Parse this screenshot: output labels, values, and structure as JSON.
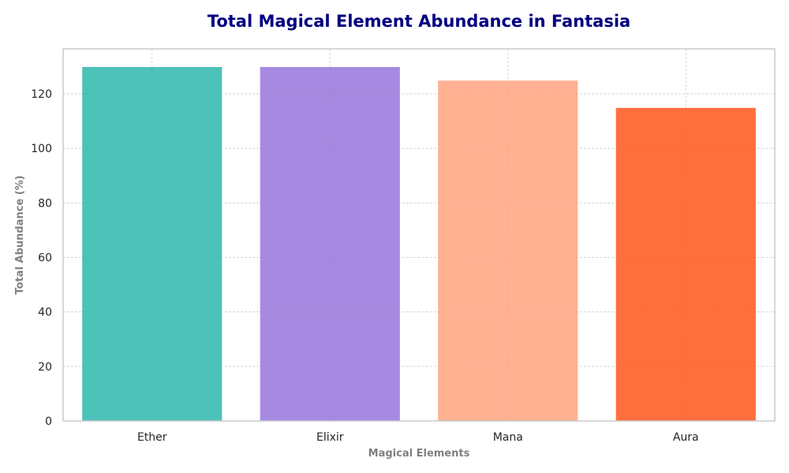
{
  "chart_data": {
    "type": "bar",
    "title": "Total Magical Element Abundance in Fantasia",
    "xlabel": "Magical Elements",
    "ylabel": "Total Abundance (%)",
    "categories": [
      "Ether",
      "Elixir",
      "Mana",
      "Aura"
    ],
    "values": [
      130,
      130,
      125,
      115
    ],
    "colors": [
      "#26b5a9",
      "#9370db",
      "#ffa07a",
      "#ff4f12"
    ],
    "ylim": [
      0,
      136.5
    ],
    "yticks": [
      0,
      20,
      40,
      60,
      80,
      100,
      120
    ],
    "grid": true
  }
}
